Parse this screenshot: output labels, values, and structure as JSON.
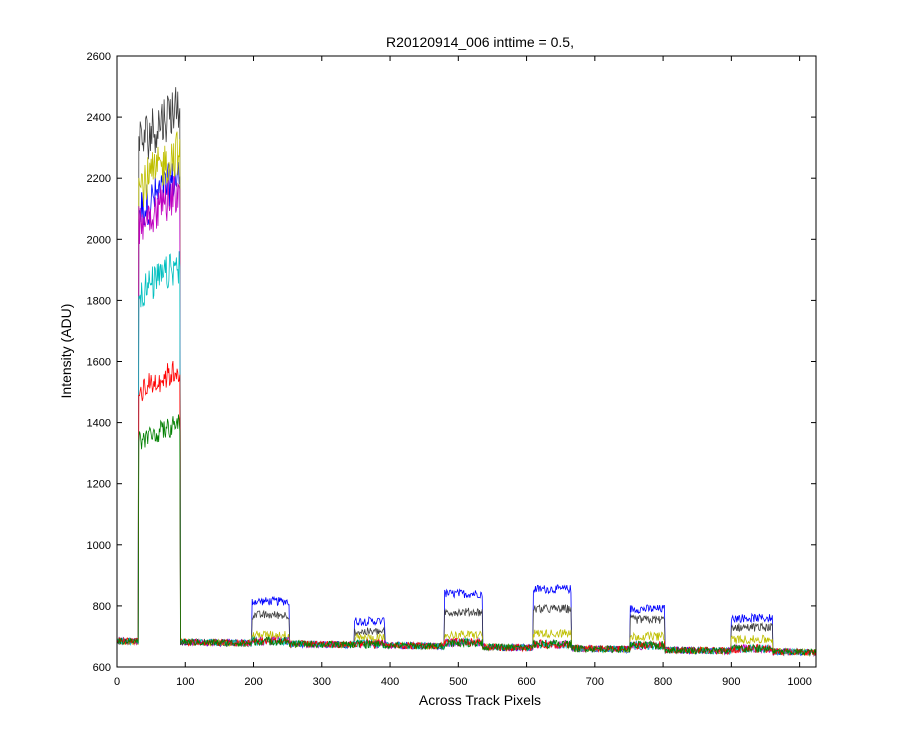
{
  "chart_data": {
    "type": "line",
    "title": "R20120914_006 inttime = 0.5,",
    "xlabel": "Across Track Pixels",
    "ylabel": "Intensity (ADU)",
    "xlim": [
      0,
      1024
    ],
    "ylim": [
      600,
      2600
    ],
    "xticks": [
      0,
      100,
      200,
      300,
      400,
      500,
      600,
      700,
      800,
      900,
      1000
    ],
    "yticks": [
      600,
      800,
      1000,
      1200,
      1400,
      1600,
      1800,
      2000,
      2200,
      2400,
      2600
    ],
    "grid": false,
    "baseline_start": 685,
    "baseline_end": 648,
    "blocks": [
      {
        "x0": 32,
        "x1": 92
      },
      {
        "x0": 198,
        "x1": 252
      },
      {
        "x0": 348,
        "x1": 392
      },
      {
        "x0": 480,
        "x1": 535
      },
      {
        "x0": 610,
        "x1": 665
      },
      {
        "x0": 752,
        "x1": 802
      },
      {
        "x0": 900,
        "x1": 960
      }
    ],
    "series": [
      {
        "color": "#0000ff",
        "levels": [
          2150,
          815,
          750,
          840,
          855,
          790,
          760
        ]
      },
      {
        "color": "#404040",
        "levels": [
          2380,
          770,
          715,
          780,
          790,
          755,
          730
        ]
      },
      {
        "color": "#bfbf00",
        "levels": [
          2230,
          705,
          695,
          705,
          710,
          700,
          690
        ]
      },
      {
        "color": "#bf00bf",
        "levels": [
          2110,
          685,
          675,
          680,
          675,
          670,
          660
        ]
      },
      {
        "color": "#00bfbf",
        "levels": [
          1870,
          685,
          675,
          680,
          675,
          670,
          660
        ]
      },
      {
        "color": "#ff0000",
        "levels": [
          1540,
          685,
          675,
          680,
          675,
          670,
          660
        ]
      },
      {
        "color": "#008000",
        "levels": [
          1370,
          685,
          675,
          680,
          675,
          670,
          660
        ]
      }
    ]
  }
}
